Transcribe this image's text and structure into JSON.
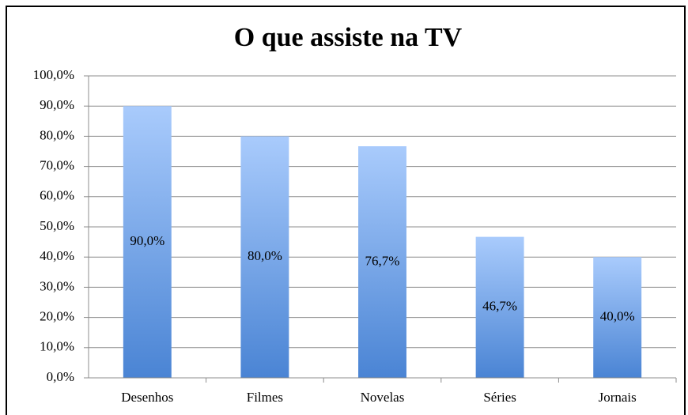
{
  "chart_data": {
    "type": "bar",
    "title": "O que assiste na TV",
    "categories": [
      "Desenhos",
      "Filmes",
      "Novelas",
      "Séries",
      "Jornais"
    ],
    "values": [
      90,
      80,
      76.7,
      46.7,
      40
    ],
    "value_labels": [
      "90,0%",
      "80,0%",
      "76,7%",
      "46,7%",
      "40,0%"
    ],
    "ylim": [
      0,
      100
    ],
    "yticks": [
      {
        "value": 0,
        "label": "0,0%"
      },
      {
        "value": 10,
        "label": "10,0%"
      },
      {
        "value": 20,
        "label": "20,0%"
      },
      {
        "value": 30,
        "label": "30,0%"
      },
      {
        "value": 40,
        "label": "40,0%"
      },
      {
        "value": 50,
        "label": "50,0%"
      },
      {
        "value": 60,
        "label": "60,0%"
      },
      {
        "value": 70,
        "label": "70,0%"
      },
      {
        "value": 80,
        "label": "80,0%"
      },
      {
        "value": 90,
        "label": "90,0%"
      },
      {
        "value": 100,
        "label": "100,0%"
      }
    ],
    "grid": true
  }
}
